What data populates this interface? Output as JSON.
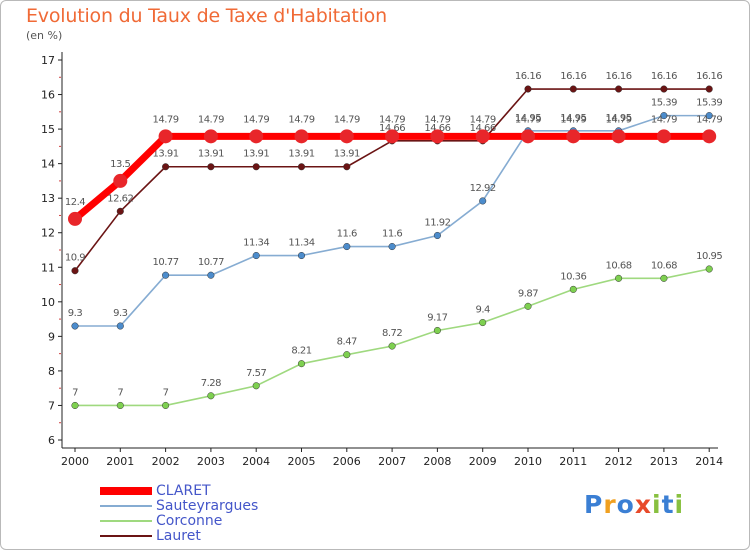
{
  "title": "Evolution du Taux de Taxe d'Habitation",
  "unit_label": "(en %)",
  "logo": {
    "text": "Proxiti",
    "letters": [
      {
        "ch": "P",
        "color": "#3b7fd4"
      },
      {
        "ch": "r",
        "color": "#f0a020"
      },
      {
        "ch": "o",
        "color": "#3b7fd4"
      },
      {
        "ch": "x",
        "color": "#e84a2a"
      },
      {
        "ch": "i",
        "color": "#88c040"
      },
      {
        "ch": "t",
        "color": "#3b7fd4"
      },
      {
        "ch": "i",
        "color": "#88c040"
      }
    ]
  },
  "chart_data": {
    "type": "line",
    "x": [
      "2000",
      "2001",
      "2002",
      "2003",
      "2004",
      "2005",
      "2006",
      "2007",
      "2008",
      "2009",
      "2010",
      "2011",
      "2012",
      "2013",
      "2014"
    ],
    "ylim": [
      6,
      17
    ],
    "yticks": [
      "6",
      "7",
      "8",
      "9",
      "10",
      "11",
      "12",
      "13",
      "14",
      "15",
      "16",
      "17"
    ],
    "grid": false,
    "legend_position": "bottom-left",
    "series": [
      {
        "name": "Lauret",
        "color": "#6b1414",
        "marker_color": "#6b1414",
        "values": [
          10.9,
          12.62,
          13.91,
          13.91,
          13.91,
          13.91,
          13.91,
          14.66,
          14.66,
          14.66,
          16.16,
          16.16,
          16.16,
          16.16,
          16.16
        ],
        "labels": [
          "10.9",
          "12.62",
          "13.91",
          "13.91",
          "13.91",
          "13.91",
          "13.91",
          "14.66",
          "14.66",
          "14.66",
          "16.16",
          "16.16",
          "16.16",
          "16.16",
          "16.16"
        ]
      },
      {
        "name": "Corconne",
        "color": "#9fd97f",
        "marker_color": "#7ed050",
        "values": [
          7,
          7,
          7,
          7.28,
          7.57,
          8.21,
          8.47,
          8.72,
          9.17,
          9.4,
          9.87,
          10.36,
          10.68,
          10.68,
          10.95
        ],
        "labels": [
          "7",
          "7",
          "7",
          "7.28",
          "7.57",
          "8.21",
          "8.47",
          "8.72",
          "9.17",
          "9.4",
          "9.87",
          "10.36",
          "10.68",
          "10.68",
          "10.95"
        ]
      },
      {
        "name": "Sauteyrargues",
        "color": "#86acd2",
        "marker_color": "#4c8ccc",
        "values": [
          9.3,
          9.3,
          10.77,
          10.77,
          11.34,
          11.34,
          11.6,
          11.6,
          11.92,
          12.92,
          14.95,
          14.95,
          14.95,
          15.39,
          15.39
        ],
        "labels": [
          "9.3",
          "9.3",
          "10.77",
          "10.77",
          "11.34",
          "11.34",
          "11.6",
          "11.6",
          "11.92",
          "12.92",
          "14.95",
          "14.95",
          "14.95",
          "15.39",
          "15.39"
        ]
      },
      {
        "name": "CLARET",
        "color": "#ff0000",
        "marker_color": "#e8262a",
        "values": [
          12.4,
          13.5,
          14.79,
          14.79,
          14.79,
          14.79,
          14.79,
          14.79,
          14.79,
          14.79,
          14.79,
          14.79,
          14.79,
          14.79,
          14.79
        ],
        "labels": [
          "12.4",
          "13.5",
          "14.79",
          "14.79",
          "14.79",
          "14.79",
          "14.79",
          "14.79",
          "14.79",
          "14.79",
          "14.79",
          "14.79",
          "14.79",
          "14.79",
          "14.79"
        ]
      }
    ]
  },
  "legend": [
    {
      "label": "CLARET",
      "color": "#ff0000",
      "weight": "thick"
    },
    {
      "label": "Sauteyrargues",
      "color": "#86acd2",
      "weight": "thin"
    },
    {
      "label": "Corconne",
      "color": "#9fd97f",
      "weight": "thin"
    },
    {
      "label": "Lauret",
      "color": "#6b1414",
      "weight": "thin"
    }
  ]
}
